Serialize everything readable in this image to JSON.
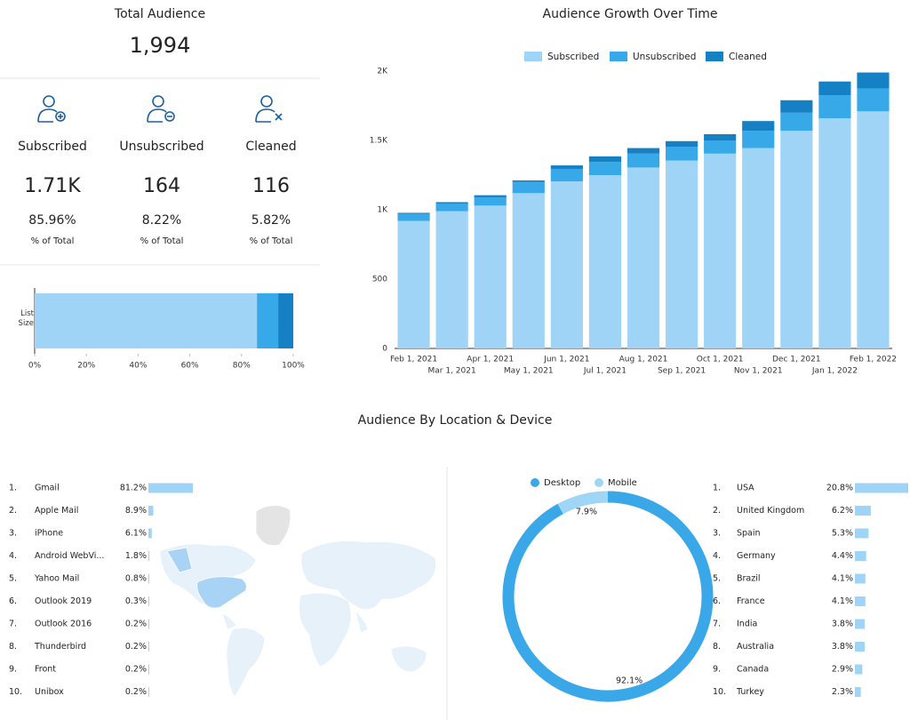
{
  "summary": {
    "title": "Total Audience",
    "total": "1,994",
    "items": [
      {
        "label": "Subscribed",
        "value": "1.71K",
        "percent": "85.96%",
        "note": "% of Total"
      },
      {
        "label": "Unsubscribed",
        "value": "164",
        "percent": "8.22%",
        "note": "% of Total"
      },
      {
        "label": "Cleaned",
        "value": "116",
        "percent": "5.82%",
        "note": "% of Total"
      }
    ]
  },
  "section_title": "Audience By Location & Device",
  "chart_data": [
    {
      "type": "bar",
      "orientation": "horizontal",
      "stacked": true,
      "categories": [
        "List Size"
      ],
      "series": [
        {
          "name": "Subscribed",
          "color": "#9fd4f7",
          "values": [
            85.96
          ]
        },
        {
          "name": "Unsubscribed",
          "color": "#37a9e9",
          "values": [
            8.22
          ]
        },
        {
          "name": "Cleaned",
          "color": "#1581c4",
          "values": [
            5.82
          ]
        }
      ],
      "xlim": [
        0,
        100
      ],
      "xticks": [
        {
          "value": 0,
          "label": "0%"
        },
        {
          "value": 20,
          "label": "20%"
        },
        {
          "value": 40,
          "label": "40%"
        },
        {
          "value": 60,
          "label": "60%"
        },
        {
          "value": 80,
          "label": "80%"
        },
        {
          "value": 100,
          "label": "100%"
        }
      ]
    },
    {
      "type": "bar",
      "orientation": "vertical",
      "stacked": true,
      "title": "Audience Growth Over Time",
      "categories": [
        "Feb 1, 2021",
        "Mar 1, 2021",
        "Apr 1, 2021",
        "May 1, 2021",
        "Jun 1, 2021",
        "Jul 1, 2021",
        "Aug 1, 2021",
        "Sep 1, 2021",
        "Oct 1, 2021",
        "Nov 1, 2021",
        "Dec 1, 2021",
        "Jan 1, 2022",
        "Feb 1, 2022"
      ],
      "series": [
        {
          "name": "Subscribed",
          "color": "#9fd4f7",
          "values": [
            920,
            990,
            1030,
            1120,
            1205,
            1250,
            1305,
            1355,
            1405,
            1445,
            1570,
            1660,
            1710
          ]
        },
        {
          "name": "Unsubscribed",
          "color": "#37a9e9",
          "values": [
            50,
            55,
            60,
            80,
            90,
            95,
            100,
            100,
            95,
            125,
            130,
            165,
            164
          ]
        },
        {
          "name": "Cleaned",
          "color": "#1581c4",
          "values": [
            8,
            10,
            15,
            12,
            25,
            40,
            40,
            40,
            45,
            70,
            90,
            100,
            116
          ]
        }
      ],
      "ylim": [
        0,
        2000
      ],
      "yticks": [
        0,
        500,
        {
          "value": 1000,
          "label": "1K"
        },
        {
          "value": 1500,
          "label": "1.5K"
        },
        {
          "value": 2000,
          "label": "2K"
        }
      ],
      "legend": "top"
    },
    {
      "type": "bar",
      "orientation": "horizontal",
      "color": "#9fd4f7",
      "ranks": [
        "1.",
        "2.",
        "3.",
        "4.",
        "5.",
        "6.",
        "7.",
        "8.",
        "9.",
        "10."
      ],
      "categories": [
        "Gmail",
        "Apple Mail",
        "iPhone",
        "Android WebVi...",
        "Yahoo Mail",
        "Outlook 2019",
        "Outlook 2016",
        "Thunderbird",
        "Front",
        "Unibox"
      ],
      "values": [
        81.2,
        8.9,
        6.1,
        1.8,
        0.8,
        0.3,
        0.2,
        0.2,
        0.2,
        0.2
      ],
      "value_labels": [
        "81.2%",
        "8.9%",
        "6.1%",
        "1.8%",
        "0.8%",
        "0.3%",
        "0.2%",
        "0.2%",
        "0.2%",
        "0.2%"
      ]
    },
    {
      "type": "pie",
      "donut": true,
      "categories": [
        "Desktop",
        "Mobile"
      ],
      "values": [
        92.1,
        7.9
      ],
      "value_labels": [
        "92.1%",
        "7.9%"
      ],
      "colors": [
        "#3aa8e8",
        "#9fd5f5"
      ],
      "legend": "top"
    },
    {
      "type": "bar",
      "orientation": "horizontal",
      "color": "#9fd4f7",
      "ranks": [
        "1.",
        "2.",
        "3.",
        "4.",
        "5.",
        "6.",
        "7.",
        "8.",
        "9.",
        "10."
      ],
      "categories": [
        "USA",
        "United Kingdom",
        "Spain",
        "Germany",
        "Brazil",
        "France",
        "India",
        "Australia",
        "Canada",
        "Turkey"
      ],
      "values": [
        20.8,
        6.2,
        5.3,
        4.4,
        4.1,
        4.1,
        3.8,
        3.8,
        2.9,
        2.3
      ],
      "value_labels": [
        "20.8%",
        "6.2%",
        "5.3%",
        "4.4%",
        "4.1%",
        "4.1%",
        "3.8%",
        "3.8%",
        "2.9%",
        "2.3%"
      ]
    }
  ]
}
